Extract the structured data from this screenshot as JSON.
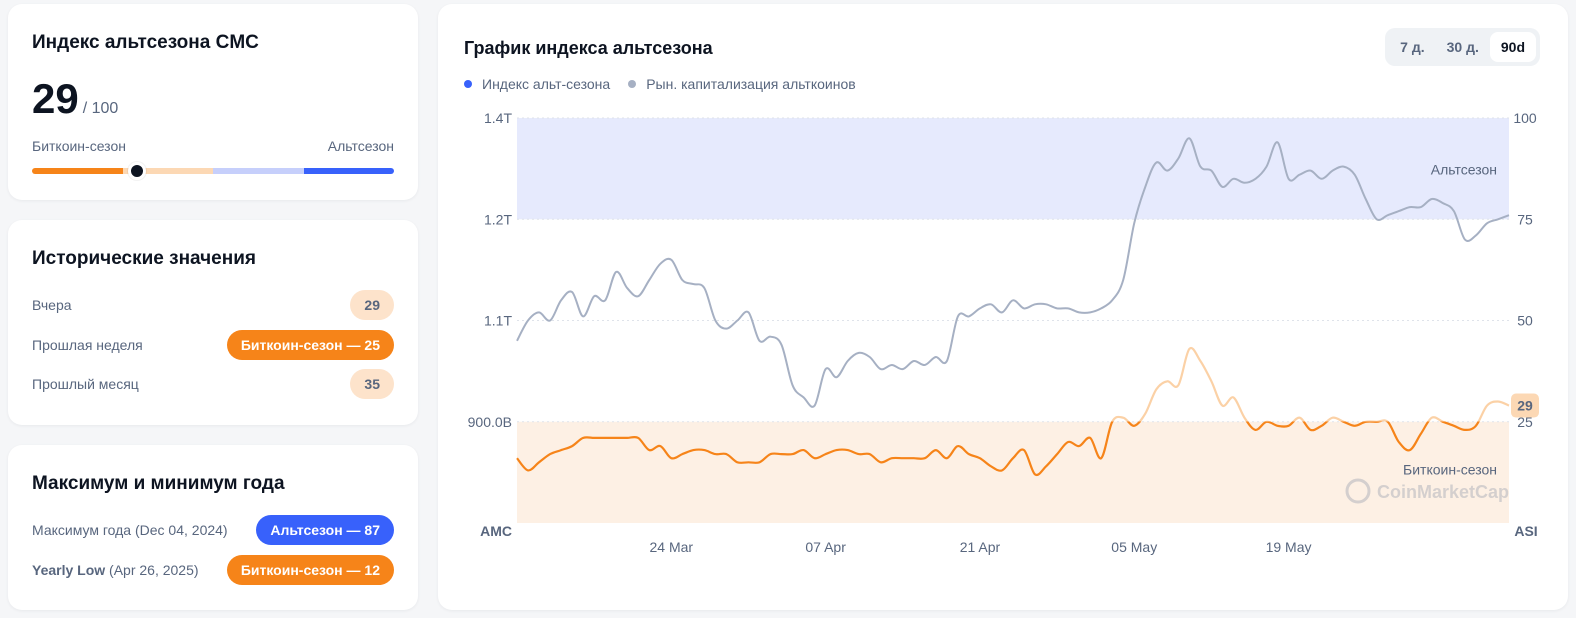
{
  "index_card": {
    "title": "Индекс альтсезона CMC",
    "value": "29",
    "max": "/ 100",
    "score": 29,
    "left_label": "Биткоин-сезон",
    "right_label": "Альтсезон",
    "colors": [
      "#f68419",
      "#fcd8b4",
      "#c6cffb",
      "#3861fb"
    ]
  },
  "historical": {
    "title": "Исторические значения",
    "rows": [
      {
        "label": "Вчера",
        "value": "29"
      },
      {
        "label": "Прошлая неделя",
        "value": "Биткоин-сезон — 25"
      },
      {
        "label": "Прошлый месяц",
        "value": "35"
      }
    ]
  },
  "yearly": {
    "title": "Максимум и минимум года",
    "high": {
      "label": "Максимум года",
      "date": "(Dec 04, 2024)",
      "value": "Альтсезон — 87"
    },
    "low": {
      "label": "Yearly Low",
      "date": "(Apr 26, 2025)",
      "value": "Биткоин-сезон — 12"
    }
  },
  "chart_card": {
    "title": "График индекса альтсезона",
    "ranges": [
      "7 д.",
      "30 д.",
      "90d"
    ],
    "active_range": "90d",
    "legend": [
      {
        "label": "Индекс альт-сезона",
        "color": "#3861fb"
      },
      {
        "label": "Рын. капитализация альткоинов",
        "color": "#a6b0c3"
      }
    ],
    "watermark": "CoinMarketCap"
  },
  "chart_data": {
    "type": "line",
    "title": "График индекса альтсезона",
    "x_tick_labels": [
      "24 Mar",
      "07 Apr",
      "21 Apr",
      "05 May",
      "19 May"
    ],
    "x_ticks_day": [
      14,
      28,
      42,
      56,
      70
    ],
    "x_range_days": [
      0,
      90
    ],
    "left_axis": {
      "labels": [
        "1.4T",
        "1.2T",
        "1.1T",
        "900.0B"
      ],
      "bottom_label": "AMC"
    },
    "right_axis": {
      "labels": [
        "100",
        "75",
        "50",
        "25"
      ],
      "bottom_label": "ASI",
      "ylim": [
        0,
        100
      ]
    },
    "zones": [
      {
        "name": "Альтсезон",
        "from": 75,
        "to": 100,
        "color": "#e6eafd"
      },
      {
        "name": "Биткоин-сезон",
        "from": 0,
        "to": 25,
        "color": "#fdf0e4"
      }
    ],
    "current_value": "29",
    "series": [
      {
        "name": "Индекс альт-сезона",
        "axis": "right",
        "color_low": "#f68419",
        "color_mid": "#fbd1a6",
        "values": [
          16,
          13,
          15,
          17,
          18,
          19,
          21,
          21,
          21,
          21,
          21,
          21,
          18,
          19,
          16,
          17,
          18,
          18,
          17,
          17,
          15,
          15,
          15,
          17,
          17,
          17,
          18,
          16,
          17,
          18,
          18,
          17,
          17,
          15,
          16,
          16,
          16,
          16,
          18,
          16,
          19,
          17,
          16,
          14,
          13,
          16,
          18,
          12,
          14,
          17,
          20,
          19,
          21,
          16,
          25,
          26,
          24,
          27,
          33,
          35,
          34,
          43,
          40,
          35,
          29,
          31,
          26,
          23,
          25,
          24,
          24,
          26,
          23,
          24,
          26,
          25,
          24,
          25,
          25,
          25,
          20,
          18,
          22,
          26,
          25,
          24,
          23,
          24,
          29,
          30,
          29
        ]
      },
      {
        "name": "Рын. капитализация альткоинов",
        "axis": "left",
        "color": "#a6b0c3",
        "values": [
          45,
          50,
          52,
          50,
          55,
          57,
          51,
          56,
          55,
          62,
          58,
          56,
          60,
          64,
          65,
          60,
          59,
          58,
          50,
          48,
          50,
          52,
          45,
          46,
          44,
          34,
          31,
          29,
          38,
          36,
          40,
          42,
          41,
          38,
          39,
          38,
          40,
          39,
          41,
          40,
          51,
          51,
          53,
          54,
          52,
          55,
          53,
          54,
          54,
          53,
          53,
          52,
          52,
          53,
          55,
          60,
          74,
          83,
          89,
          87,
          90,
          95,
          88,
          87,
          83,
          85,
          84,
          85,
          88,
          94,
          85,
          86,
          87,
          85,
          87,
          88,
          86,
          80,
          75,
          76,
          77,
          78,
          78,
          80,
          79,
          77,
          70,
          71,
          74,
          75,
          76
        ]
      }
    ]
  }
}
